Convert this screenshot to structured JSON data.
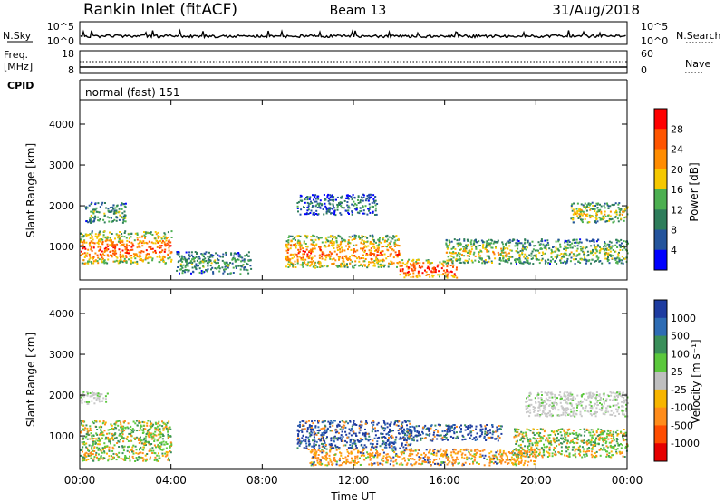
{
  "header": {
    "title": "Rankin Inlet (fitACF)",
    "beam": "Beam 13",
    "date": "31/Aug/2018"
  },
  "top_panels": {
    "nsky_label": "N.Sky",
    "nsky_ticks": [
      "10^5",
      "10^0"
    ],
    "nsearch_label": "N.Search",
    "nsearch_ticks": [
      "10^5",
      "10^0"
    ],
    "freq_label_1": "Freq.",
    "freq_label_2": "[MHz]",
    "freq_ticks": [
      "18",
      "8"
    ],
    "nave_label": "Nave",
    "nave_ticks": [
      "60",
      "0"
    ],
    "cpid_label": "CPID",
    "cpid_value": "normal (fast) 151"
  },
  "chart_data": [
    {
      "type": "heatmap",
      "name": "power",
      "ylabel": "Slant Range [km]",
      "yticks": [
        "4000",
        "3000",
        "2000",
        "1000"
      ],
      "yticks_values": [
        4000,
        3000,
        2000,
        1000
      ],
      "ylim": [
        180,
        4600
      ],
      "xlim": [
        0,
        24
      ],
      "colorbar_label": "Power [dB]",
      "colorbar_ticks": [
        "28",
        "24",
        "20",
        "16",
        "12",
        "8",
        "4"
      ],
      "colorbar_colors": [
        "#ff0000",
        "#ff5500",
        "#ff8c00",
        "#f5c800",
        "#4caf50",
        "#2e7d5b",
        "#24549c",
        "#0000ff"
      ],
      "regions": [
        {
          "t0": 0.0,
          "t1": 4.0,
          "r0": 600,
          "r1": 1400,
          "level": 0.85
        },
        {
          "t0": 0.2,
          "t1": 2.0,
          "r0": 1600,
          "r1": 2100,
          "level": 0.45
        },
        {
          "t0": 4.2,
          "t1": 7.5,
          "r0": 350,
          "r1": 900,
          "level": 0.4
        },
        {
          "t0": 9.0,
          "t1": 14.0,
          "r0": 500,
          "r1": 1300,
          "level": 0.8
        },
        {
          "t0": 14.0,
          "t1": 16.5,
          "r0": 250,
          "r1": 700,
          "level": 0.95
        },
        {
          "t0": 16.0,
          "t1": 19.0,
          "r0": 600,
          "r1": 1200,
          "level": 0.6
        },
        {
          "t0": 19.0,
          "t1": 24.0,
          "r0": 600,
          "r1": 1200,
          "level": 0.5
        },
        {
          "t0": 21.5,
          "t1": 24.0,
          "r0": 1600,
          "r1": 2100,
          "level": 0.6
        },
        {
          "t0": 9.5,
          "t1": 13.0,
          "r0": 1800,
          "r1": 2300,
          "level": 0.3
        }
      ]
    },
    {
      "type": "heatmap",
      "name": "velocity",
      "ylabel": "Slant Range [km]",
      "yticks": [
        "4000",
        "3000",
        "2000",
        "1000"
      ],
      "yticks_values": [
        4000,
        3000,
        2000,
        1000
      ],
      "ylim": [
        180,
        4600
      ],
      "xlim": [
        0,
        24
      ],
      "xlabel": "Time UT",
      "xticks": [
        "00:00",
        "04:00",
        "08:00",
        "12:00",
        "16:00",
        "20:00",
        "00:00"
      ],
      "xticks_values": [
        0,
        4,
        8,
        12,
        16,
        20,
        24
      ],
      "colorbar_label": "Velocity [m s⁻¹]",
      "colorbar_ticks": [
        "1000",
        "500",
        "100",
        "25",
        "-25",
        "-100",
        "-500",
        "-1000"
      ],
      "colorbar_colors": [
        "#1e3ca0",
        "#2e6cb4",
        "#3a8f5a",
        "#5bc83c",
        "#bfbfbf",
        "#f7b500",
        "#ff8c1a",
        "#ff4d00",
        "#e60000"
      ],
      "regions": [
        {
          "t0": 0.0,
          "t1": 4.0,
          "r0": 400,
          "r1": 1400,
          "kind": "mixed-green-orange"
        },
        {
          "t0": 0.0,
          "t1": 1.2,
          "r0": 1800,
          "r1": 2100,
          "kind": "ground"
        },
        {
          "t0": 9.5,
          "t1": 14.5,
          "r0": 700,
          "r1": 1400,
          "kind": "blue"
        },
        {
          "t0": 10.0,
          "t1": 20.0,
          "r0": 300,
          "r1": 700,
          "kind": "orange"
        },
        {
          "t0": 14.0,
          "t1": 18.5,
          "r0": 900,
          "r1": 1300,
          "kind": "blue"
        },
        {
          "t0": 19.5,
          "t1": 24.0,
          "r0": 1500,
          "r1": 2100,
          "kind": "ground"
        },
        {
          "t0": 19.0,
          "t1": 24.0,
          "r0": 500,
          "r1": 1200,
          "kind": "mixed-green-orange"
        }
      ]
    }
  ]
}
